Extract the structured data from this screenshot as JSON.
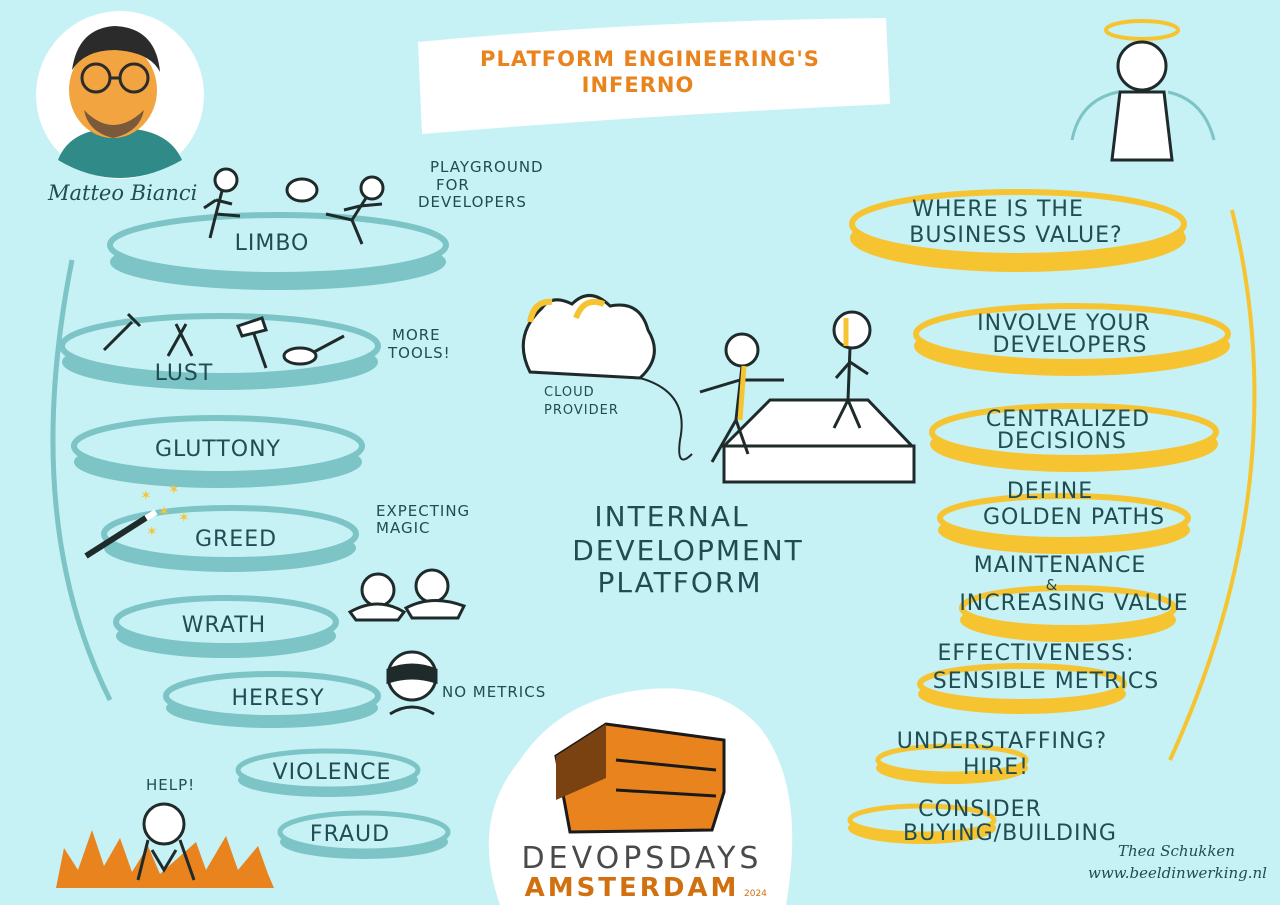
{
  "title": {
    "line1": "PLATFORM ENGINEERING'S",
    "line2": "INFERNO"
  },
  "speaker": {
    "name": "Matteo Bianci"
  },
  "circles_of_hell": [
    {
      "label": "LIMBO",
      "note": "PLAYGROUND FOR DEVELOPERS"
    },
    {
      "label": "LUST",
      "note": "MORE TOOLS!"
    },
    {
      "label": "GLUTTONY",
      "note": ""
    },
    {
      "label": "GREED",
      "note": "EXPECTING MAGIC"
    },
    {
      "label": "WRATH",
      "note": ""
    },
    {
      "label": "HERESY",
      "note": "NO METRICS"
    },
    {
      "label": "VIOLENCE",
      "note": ""
    },
    {
      "label": "FRAUD",
      "note": ""
    }
  ],
  "help_text": "HELP!",
  "center": {
    "cloud_label_1": "CLOUD",
    "cloud_label_2": "PROVIDER",
    "idp_line1": "INTERNAL",
    "idp_line2": "DEVELOPMENT",
    "idp_line3": "PLATFORM"
  },
  "heaven_steps": [
    {
      "line1": "WHERE IS THE",
      "line2": "BUSINESS VALUE?"
    },
    {
      "line1": "INVOLVE YOUR",
      "line2": "DEVELOPERS"
    },
    {
      "line1": "CENTRALIZED",
      "line2": "DECISIONS"
    },
    {
      "line1": "DEFINE",
      "line2": "GOLDEN PATHS"
    },
    {
      "line1": "MAINTENANCE",
      "line2": "&",
      "line3": "INCREASING VALUE"
    },
    {
      "line1": "EFFECTIVENESS:",
      "line2": "SENSIBLE METRICS"
    },
    {
      "line1": "UNDERSTAFFING?",
      "line2": "HIRE!"
    },
    {
      "line1": "CONSIDER",
      "line2": "BUYING/BUILDING"
    }
  ],
  "logo": {
    "line1": "DEVOPSDAYS",
    "line2": "AMSTERDAM",
    "year": "2024"
  },
  "credits": {
    "artist": "Thea Schukken",
    "url": "www.beeldinwerking.nl"
  },
  "colors": {
    "background": "#c6f1f5",
    "teal": "#7cc4c6",
    "orange": "#e8831d",
    "yellow": "#f7c431",
    "ink": "#1f4d52"
  }
}
